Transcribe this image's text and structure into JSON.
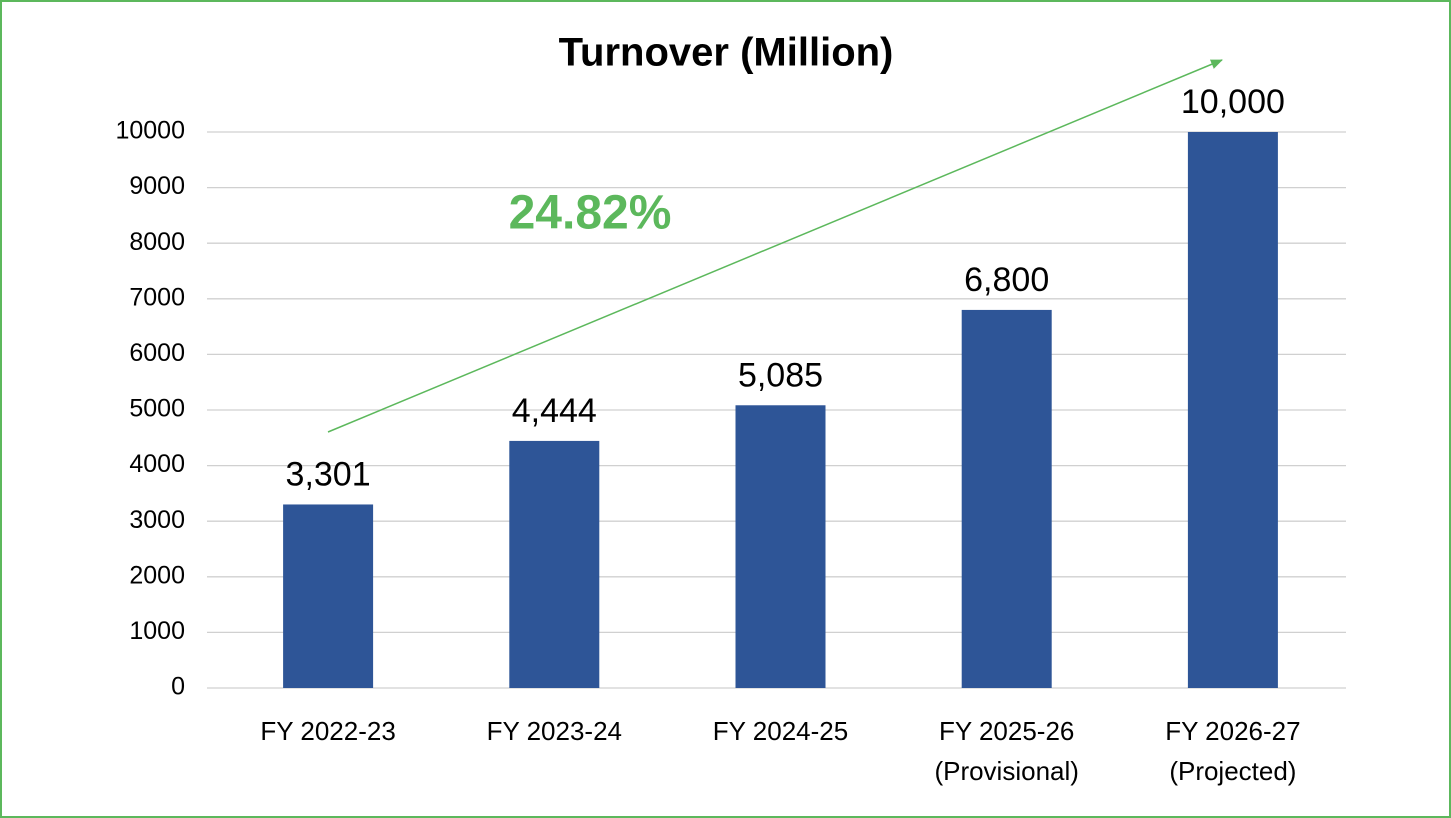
{
  "chart_data": {
    "type": "bar",
    "title": "Turnover (Million)",
    "categories": [
      [
        "FY 2022-23"
      ],
      [
        "FY 2023-24"
      ],
      [
        "FY 2024-25"
      ],
      [
        "FY 2025-26",
        "(Provisional)"
      ],
      [
        "FY 2026-27",
        "(Projected)"
      ]
    ],
    "values": [
      3301,
      4444,
      5085,
      6800,
      10000
    ],
    "value_labels": [
      "3,301",
      "4,444",
      "5,085",
      "6,800",
      "10,000"
    ],
    "color": "#2e5597",
    "ylim": [
      0,
      10000
    ],
    "yticks": [
      0,
      1000,
      2000,
      3000,
      4000,
      5000,
      6000,
      7000,
      8000,
      9000,
      10000
    ],
    "grid": true,
    "annotation": "24.82%"
  }
}
